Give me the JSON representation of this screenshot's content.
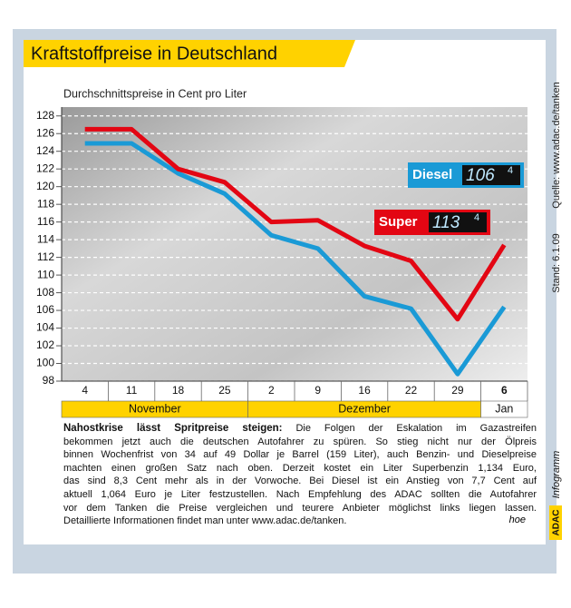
{
  "chart_data": {
    "type": "line",
    "title": "Kraftstoffpreise in Deutschland",
    "y_label": "Durchschnittspreise in Cent pro Liter",
    "categories": [
      "4",
      "11",
      "18",
      "25",
      "2",
      "9",
      "16",
      "22",
      "29",
      "6"
    ],
    "months": [
      {
        "label": "November",
        "span": 4
      },
      {
        "label": "Dezember",
        "span": 5
      },
      {
        "label": "Jan",
        "span": 1
      }
    ],
    "series": [
      {
        "name": "Super",
        "color": "#e30613",
        "values": [
          126.5,
          126.5,
          122,
          120.5,
          116,
          116.2,
          113.3,
          111.6,
          105,
          113.4
        ],
        "display": [
          "113",
          "4"
        ]
      },
      {
        "name": "Diesel",
        "color": "#1a9ad6",
        "values": [
          124.9,
          124.9,
          121.5,
          119.2,
          114.5,
          113,
          107.6,
          106.2,
          98.8,
          106.4
        ],
        "display": [
          "106",
          "4"
        ]
      }
    ],
    "ylim": [
      98,
      129
    ],
    "yticks": [
      98,
      100,
      102,
      104,
      106,
      108,
      110,
      112,
      114,
      116,
      118,
      120,
      122,
      124,
      126,
      128
    ],
    "grid": true,
    "source": "Quelle: www.adac.de/tanken",
    "date": "Stand: 6.1.09",
    "lead": "Nahostkrise lässt Spritpreise steigen:",
    "body_lines": [
      "Die Folgen der Eskalation im Gazastreifen",
      "bekommen jetzt auch die deutschen Autofahrer zu spüren. So stieg nicht nur der Ölpreis",
      "binnen Wochenfrist von 34 auf 49 Dollar je Barrel (159 Liter), auch Benzin- und Dieselpreise",
      "machten einen großen Satz nach oben. Derzeit kostet ein Liter Superbenzin 1,134 Euro,",
      "das sind 8,3 Cent mehr als in der Vorwoche. Bei Diesel ist ein Anstieg von 7,7 Cent auf",
      "aktuell 1,064 Euro je Liter festzustellen. Nach Empfehlung des ADAC sollten die Autofahrer",
      "vor dem Tanken die Preise vergleichen und teurere Anbieter möglichst links liegen lassen.",
      "Detaillierte Informationen findet man unter www.adac.de/tanken."
    ],
    "author": "hoe",
    "brand": "ADAC",
    "brand_label": "Infogramm"
  }
}
